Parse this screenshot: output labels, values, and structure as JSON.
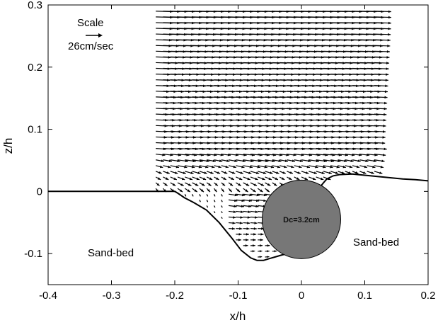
{
  "chart_data": {
    "type": "vector-field",
    "xlabel": "x/h",
    "ylabel": "z/h",
    "xlim": [
      -0.4,
      0.2
    ],
    "ylim": [
      -0.15,
      0.3
    ],
    "x_ticks": [
      "-0.4",
      "-0.3",
      "-0.2",
      "-0.1",
      "0",
      "0.1",
      "0.2"
    ],
    "y_ticks": [
      "-0.1",
      "0",
      "0.1",
      "0.2",
      "0.3"
    ],
    "grid": false,
    "annotations": {
      "scale_title": "Scale",
      "scale_value": "26cm/sec",
      "sand_bed_left": "Sand-bed",
      "sand_bed_right": "Sand-bed",
      "cylinder_label": "Dc=3.2cm"
    },
    "cylinder": {
      "center": [
        0,
        -0.045
      ],
      "radius": 0.062,
      "color": "#777777"
    },
    "bed_profile": {
      "x": [
        -0.4,
        -0.2,
        -0.195,
        -0.185,
        -0.17,
        -0.15,
        -0.13,
        -0.11,
        -0.095,
        -0.08,
        -0.07,
        -0.06,
        -0.05,
        -0.04,
        -0.03,
        -0.02,
        0.03,
        0.035,
        0.04,
        0.05,
        0.06,
        0.08,
        0.1,
        0.12,
        0.14,
        0.16,
        0.18,
        0.2
      ],
      "y": [
        0,
        0,
        -0.003,
        -0.01,
        -0.018,
        -0.03,
        -0.05,
        -0.075,
        -0.095,
        -0.107,
        -0.111,
        -0.111,
        -0.108,
        -0.105,
        -0.102,
        -0.1,
        0.008,
        0.014,
        0.02,
        0.025,
        0.027,
        0.028,
        0.026,
        0.024,
        0.022,
        0.02,
        0.019,
        0.017
      ]
    },
    "vector_field": {
      "scale_speed_cm_s": 26,
      "x_start": -0.23,
      "x_end": 0.115,
      "dx": 0.0115,
      "z_top": 0.29,
      "dz": 0.0092
    }
  }
}
